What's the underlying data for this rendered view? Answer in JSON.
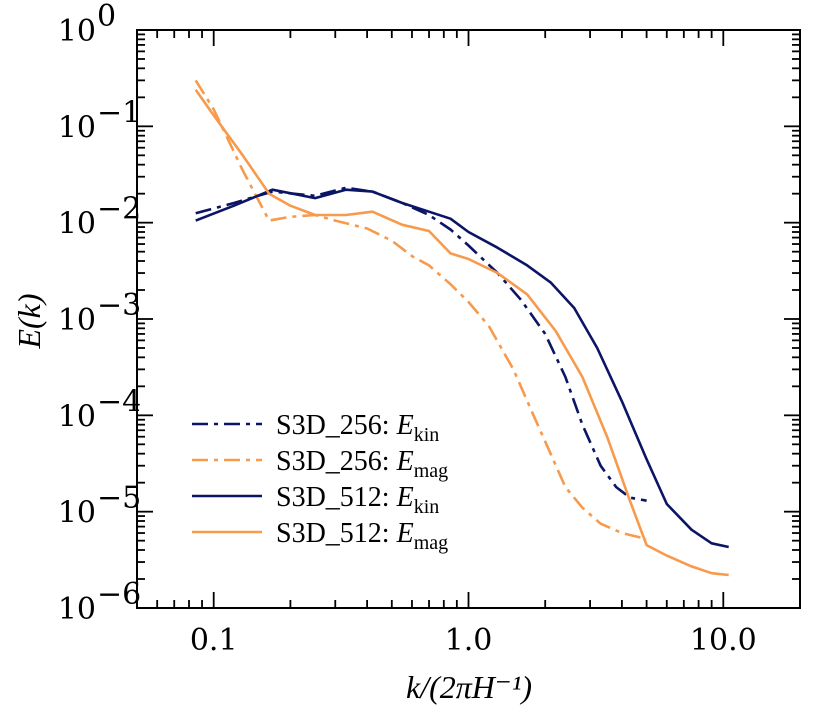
{
  "chart_data": {
    "type": "line",
    "title": "",
    "xlabel": "k/(2πH⁻¹)",
    "ylabel": "E(k)",
    "xscale": "log",
    "yscale": "log",
    "xlim": [
      0.05,
      20
    ],
    "ylim": [
      1e-06,
      1
    ],
    "x_tick_labels": [
      "0.1",
      "1.0",
      "10.0"
    ],
    "y_tick_labels": [
      {
        "base": "10",
        "exp": "0"
      },
      {
        "base": "10",
        "exp": "−1"
      },
      {
        "base": "10",
        "exp": "−2"
      },
      {
        "base": "10",
        "exp": "−3"
      },
      {
        "base": "10",
        "exp": "−4"
      },
      {
        "base": "10",
        "exp": "−5"
      },
      {
        "base": "10",
        "exp": "−6"
      }
    ],
    "legend_position": "bottom-left",
    "colors": {
      "navy": "#0b1566",
      "orange": "#f79a4c"
    },
    "series": [
      {
        "name": "S3D_256: Ekin",
        "legend_prefix": "S3D_256: ",
        "legend_var": "E",
        "legend_sub": "kin",
        "color": "#0b1566",
        "dash": "dashdot",
        "x": [
          0.085,
          0.12,
          0.17,
          0.25,
          0.33,
          0.42,
          0.55,
          0.7,
          0.85,
          1.0,
          1.3,
          1.6,
          2.0,
          2.4,
          2.8,
          3.3,
          3.8,
          4.3,
          5.0
        ],
        "y": [
          0.0125,
          0.016,
          0.021,
          0.019,
          0.023,
          0.021,
          0.016,
          0.012,
          0.0085,
          0.0058,
          0.003,
          0.0016,
          0.0007,
          0.00025,
          8e-05,
          3e-05,
          1.8e-05,
          1.4e-05,
          1.3e-05
        ]
      },
      {
        "name": "S3D_256: Emag",
        "legend_prefix": "S3D_256: ",
        "legend_var": "E",
        "legend_sub": "mag",
        "color": "#f79a4c",
        "dash": "dashdot",
        "x": [
          0.085,
          0.1,
          0.13,
          0.165,
          0.2,
          0.25,
          0.3,
          0.4,
          0.5,
          0.6,
          0.7,
          0.85,
          1.0,
          1.2,
          1.5,
          1.8,
          2.1,
          2.4,
          2.8,
          3.3,
          4.0,
          5.0
        ],
        "y": [
          0.3,
          0.15,
          0.035,
          0.0105,
          0.0115,
          0.012,
          0.0105,
          0.0087,
          0.0065,
          0.0045,
          0.0036,
          0.0023,
          0.0015,
          0.00085,
          0.0003,
          0.0001,
          4e-05,
          1.8e-05,
          1.1e-05,
          7.5e-06,
          6e-06,
          5.2e-06
        ]
      },
      {
        "name": "S3D_512: Ekin",
        "legend_prefix": "S3D_512: ",
        "legend_var": "E",
        "legend_sub": "kin",
        "color": "#0b1566",
        "dash": "solid",
        "x": [
          0.085,
          0.12,
          0.17,
          0.25,
          0.33,
          0.42,
          0.55,
          0.7,
          0.85,
          1.0,
          1.3,
          1.7,
          2.1,
          2.6,
          3.2,
          4.0,
          5.0,
          6.0,
          7.5,
          9.0,
          10.5
        ],
        "y": [
          0.0105,
          0.015,
          0.022,
          0.018,
          0.022,
          0.021,
          0.016,
          0.013,
          0.011,
          0.008,
          0.0055,
          0.0036,
          0.0024,
          0.0013,
          0.0005,
          0.00014,
          3.5e-05,
          1.2e-05,
          6.5e-06,
          4.7e-06,
          4.3e-06
        ]
      },
      {
        "name": "S3D_512: Emag",
        "legend_prefix": "S3D_512: ",
        "legend_var": "E",
        "legend_sub": "mag",
        "color": "#f79a4c",
        "dash": "solid",
        "x": [
          0.085,
          0.1,
          0.13,
          0.165,
          0.2,
          0.25,
          0.33,
          0.42,
          0.55,
          0.7,
          0.85,
          1.0,
          1.3,
          1.7,
          2.2,
          2.8,
          3.5,
          4.3,
          5.0,
          6.0,
          7.5,
          9.0,
          10.5
        ],
        "y": [
          0.24,
          0.13,
          0.05,
          0.02,
          0.015,
          0.012,
          0.012,
          0.013,
          0.0095,
          0.0082,
          0.0048,
          0.0042,
          0.003,
          0.0018,
          0.00075,
          0.00025,
          6e-05,
          1.3e-05,
          4.5e-06,
          3.5e-06,
          2.7e-06,
          2.3e-06,
          2.2e-06
        ]
      }
    ]
  }
}
